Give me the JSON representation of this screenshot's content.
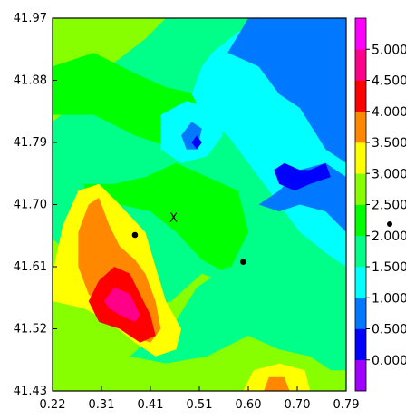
{
  "chart_data": {
    "type": "heatmap",
    "title": "",
    "xlabel": "",
    "ylabel": "",
    "xlim": [
      0.22,
      0.79
    ],
    "ylim": [
      41.43,
      41.97
    ],
    "x_ticks": [
      "0.22",
      "0.31",
      "0.41",
      "0.51",
      "0.60",
      "0.70",
      "0.79"
    ],
    "y_ticks": [
      "41.97",
      "41.88",
      "41.79",
      "41.70",
      "41.61",
      "41.52",
      "41.43"
    ],
    "colorbar": {
      "labels": [
        "0.000",
        "0.500",
        "1.000",
        "1.500",
        "2.000",
        "2.500",
        "3.000",
        "3.500",
        "4.000",
        "4.500",
        "5.000"
      ],
      "colors": [
        "#a000ff",
        "#0000ff",
        "#0078ff",
        "#00ffff",
        "#00ff88",
        "#00ff00",
        "#88ff00",
        "#ffff00",
        "#ff8800",
        "#ff0000",
        "#ff0088",
        "#ff00ff"
      ]
    },
    "markers": [
      {
        "type": "dot",
        "x": 0.38,
        "y": 41.656
      },
      {
        "type": "dot",
        "x": 0.59,
        "y": 41.617
      },
      {
        "type": "cross",
        "x": 0.455,
        "y": 41.68,
        "text": "X"
      }
    ],
    "regions": [
      {
        "level": 6,
        "points": [
          [
            0.22,
            41.43
          ],
          [
            0.79,
            41.43
          ],
          [
            0.79,
            41.97
          ],
          [
            0.22,
            41.97
          ]
        ]
      },
      {
        "level": 4,
        "points": [
          [
            0.22,
            41.65
          ],
          [
            0.27,
            41.62
          ],
          [
            0.31,
            41.6
          ],
          [
            0.35,
            41.58
          ],
          [
            0.4,
            41.55
          ],
          [
            0.45,
            41.56
          ],
          [
            0.51,
            41.6
          ],
          [
            0.58,
            41.58
          ],
          [
            0.65,
            41.55
          ],
          [
            0.72,
            41.53
          ],
          [
            0.79,
            41.51
          ],
          [
            0.79,
            41.97
          ],
          [
            0.44,
            41.97
          ],
          [
            0.4,
            41.94
          ],
          [
            0.33,
            41.9
          ],
          [
            0.27,
            41.85
          ],
          [
            0.22,
            41.82
          ]
        ]
      },
      {
        "level": 5,
        "points": [
          [
            0.3,
            41.68
          ],
          [
            0.35,
            41.7
          ],
          [
            0.41,
            41.69
          ],
          [
            0.46,
            41.66
          ],
          [
            0.51,
            41.62
          ],
          [
            0.56,
            41.6
          ],
          [
            0.6,
            41.66
          ],
          [
            0.58,
            41.72
          ],
          [
            0.52,
            41.74
          ],
          [
            0.46,
            41.76
          ],
          [
            0.4,
            41.74
          ],
          [
            0.34,
            41.73
          ],
          [
            0.28,
            41.73
          ]
        ]
      },
      {
        "level": 5,
        "points": [
          [
            0.22,
            41.9
          ],
          [
            0.3,
            41.92
          ],
          [
            0.38,
            41.89
          ],
          [
            0.44,
            41.87
          ],
          [
            0.5,
            41.86
          ],
          [
            0.55,
            41.85
          ],
          [
            0.52,
            41.8
          ],
          [
            0.46,
            41.78
          ],
          [
            0.38,
            41.8
          ],
          [
            0.3,
            41.83
          ],
          [
            0.22,
            41.83
          ]
        ]
      },
      {
        "level": 4,
        "points": [
          [
            0.37,
            41.48
          ],
          [
            0.44,
            41.47
          ],
          [
            0.52,
            41.48
          ],
          [
            0.6,
            41.51
          ],
          [
            0.66,
            41.49
          ],
          [
            0.72,
            41.48
          ],
          [
            0.76,
            41.46
          ],
          [
            0.79,
            41.46
          ],
          [
            0.79,
            41.56
          ],
          [
            0.72,
            41.58
          ],
          [
            0.64,
            41.6
          ],
          [
            0.56,
            41.61
          ],
          [
            0.5,
            41.58
          ],
          [
            0.45,
            41.52
          ],
          [
            0.4,
            41.5
          ]
        ]
      },
      {
        "level": 3,
        "points": [
          [
            0.53,
            41.92
          ],
          [
            0.58,
            41.95
          ],
          [
            0.64,
            41.97
          ],
          [
            0.79,
            41.97
          ],
          [
            0.79,
            41.61
          ],
          [
            0.75,
            41.63
          ],
          [
            0.7,
            41.66
          ],
          [
            0.64,
            41.72
          ],
          [
            0.6,
            41.76
          ],
          [
            0.56,
            41.8
          ],
          [
            0.52,
            41.82
          ],
          [
            0.49,
            41.86
          ],
          [
            0.51,
            41.9
          ]
        ]
      },
      {
        "level": 3,
        "points": [
          [
            0.43,
            41.83
          ],
          [
            0.48,
            41.85
          ],
          [
            0.53,
            41.84
          ],
          [
            0.55,
            41.8
          ],
          [
            0.52,
            41.77
          ],
          [
            0.47,
            41.76
          ],
          [
            0.43,
            41.78
          ]
        ]
      },
      {
        "level": 2,
        "points": [
          [
            0.6,
            41.97
          ],
          [
            0.79,
            41.97
          ],
          [
            0.79,
            41.76
          ],
          [
            0.75,
            41.78
          ],
          [
            0.7,
            41.84
          ],
          [
            0.66,
            41.86
          ],
          [
            0.62,
            41.9
          ],
          [
            0.56,
            41.92
          ]
        ]
      },
      {
        "level": 2,
        "points": [
          [
            0.62,
            41.7
          ],
          [
            0.66,
            41.72
          ],
          [
            0.7,
            41.75
          ],
          [
            0.75,
            41.76
          ],
          [
            0.79,
            41.74
          ],
          [
            0.79,
            41.66
          ],
          [
            0.75,
            41.69
          ],
          [
            0.7,
            41.7
          ],
          [
            0.66,
            41.69
          ]
        ]
      },
      {
        "level": 2,
        "points": [
          [
            0.47,
            41.8
          ],
          [
            0.49,
            41.82
          ],
          [
            0.51,
            41.81
          ],
          [
            0.5,
            41.78
          ],
          [
            0.48,
            41.78
          ]
        ]
      },
      {
        "level": 1,
        "points": [
          [
            0.65,
            41.75
          ],
          [
            0.67,
            41.76
          ],
          [
            0.7,
            41.75
          ],
          [
            0.72,
            41.75
          ],
          [
            0.75,
            41.76
          ],
          [
            0.76,
            41.74
          ],
          [
            0.72,
            41.73
          ],
          [
            0.69,
            41.72
          ],
          [
            0.66,
            41.73
          ]
        ]
      },
      {
        "level": 1,
        "points": [
          [
            0.49,
            41.79
          ],
          [
            0.5,
            41.8
          ],
          [
            0.51,
            41.79
          ],
          [
            0.5,
            41.78
          ]
        ]
      },
      {
        "level": 7,
        "points": [
          [
            0.22,
            41.6
          ],
          [
            0.24,
            41.67
          ],
          [
            0.27,
            41.72
          ],
          [
            0.31,
            41.73
          ],
          [
            0.35,
            41.7
          ],
          [
            0.4,
            41.66
          ],
          [
            0.42,
            41.61
          ],
          [
            0.44,
            41.56
          ],
          [
            0.47,
            41.52
          ],
          [
            0.46,
            41.49
          ],
          [
            0.42,
            41.48
          ],
          [
            0.38,
            41.5
          ],
          [
            0.33,
            41.53
          ],
          [
            0.28,
            41.55
          ],
          [
            0.22,
            41.56
          ]
        ]
      },
      {
        "level": 8,
        "points": [
          [
            0.27,
            41.66
          ],
          [
            0.29,
            41.7
          ],
          [
            0.31,
            41.71
          ],
          [
            0.33,
            41.67
          ],
          [
            0.35,
            41.64
          ],
          [
            0.38,
            41.62
          ],
          [
            0.4,
            41.6
          ],
          [
            0.42,
            41.56
          ],
          [
            0.43,
            41.52
          ],
          [
            0.41,
            41.5
          ],
          [
            0.37,
            41.51
          ],
          [
            0.33,
            41.54
          ],
          [
            0.29,
            41.57
          ],
          [
            0.27,
            41.61
          ]
        ]
      },
      {
        "level": 9,
        "points": [
          [
            0.29,
            41.56
          ],
          [
            0.31,
            41.59
          ],
          [
            0.34,
            41.61
          ],
          [
            0.37,
            41.6
          ],
          [
            0.39,
            41.57
          ],
          [
            0.41,
            41.54
          ],
          [
            0.42,
            41.51
          ],
          [
            0.39,
            41.5
          ],
          [
            0.35,
            41.52
          ],
          [
            0.31,
            41.53
          ]
        ]
      },
      {
        "level": 10,
        "points": [
          [
            0.32,
            41.56
          ],
          [
            0.34,
            41.58
          ],
          [
            0.37,
            41.57
          ],
          [
            0.39,
            41.54
          ],
          [
            0.38,
            41.53
          ],
          [
            0.35,
            41.54
          ],
          [
            0.33,
            41.55
          ]
        ]
      },
      {
        "level": 7,
        "points": [
          [
            0.59,
            41.43
          ],
          [
            0.72,
            41.43
          ],
          [
            0.71,
            41.46
          ],
          [
            0.66,
            41.47
          ],
          [
            0.61,
            41.46
          ]
        ]
      },
      {
        "level": 8,
        "points": [
          [
            0.63,
            41.43
          ],
          [
            0.68,
            41.43
          ],
          [
            0.67,
            41.45
          ],
          [
            0.64,
            41.45
          ]
        ]
      }
    ]
  }
}
